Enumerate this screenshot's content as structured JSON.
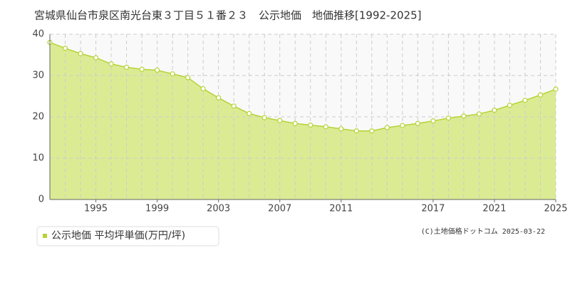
{
  "chart_data": {
    "type": "area",
    "title": "宮城県仙台市泉区南光台東３丁目５１番２３　公示地価　地価推移[1992-2025]",
    "x": [
      1992,
      1993,
      1994,
      1995,
      1996,
      1997,
      1998,
      1999,
      2000,
      2001,
      2002,
      2003,
      2004,
      2005,
      2006,
      2007,
      2008,
      2009,
      2010,
      2011,
      2012,
      2013,
      2014,
      2015,
      2016,
      2017,
      2018,
      2019,
      2020,
      2021,
      2022,
      2023,
      2024,
      2025
    ],
    "series": [
      {
        "name": "公示地価 平均坪単価(万円/坪)",
        "color": "#b5d335",
        "fill": "#dbeb94",
        "values": [
          38.0,
          36.6,
          35.3,
          34.3,
          32.8,
          32.0,
          31.5,
          31.3,
          30.4,
          29.5,
          26.8,
          24.6,
          22.6,
          20.8,
          19.8,
          19.1,
          18.4,
          18.0,
          17.6,
          17.1,
          16.6,
          16.6,
          17.4,
          17.9,
          18.4,
          19.0,
          19.7,
          20.2,
          20.7,
          21.6,
          22.8,
          24.0,
          25.3,
          26.7
        ]
      }
    ],
    "xlim": [
      1992,
      2025
    ],
    "xticks": [
      1995,
      1999,
      2003,
      2007,
      2011,
      2017,
      2021,
      2025
    ],
    "ylim": [
      0,
      40
    ],
    "yticks": [
      0,
      10,
      20,
      30,
      40
    ],
    "grid": true,
    "credit": "(C)土地価格ドットコム 2025-03-22"
  }
}
